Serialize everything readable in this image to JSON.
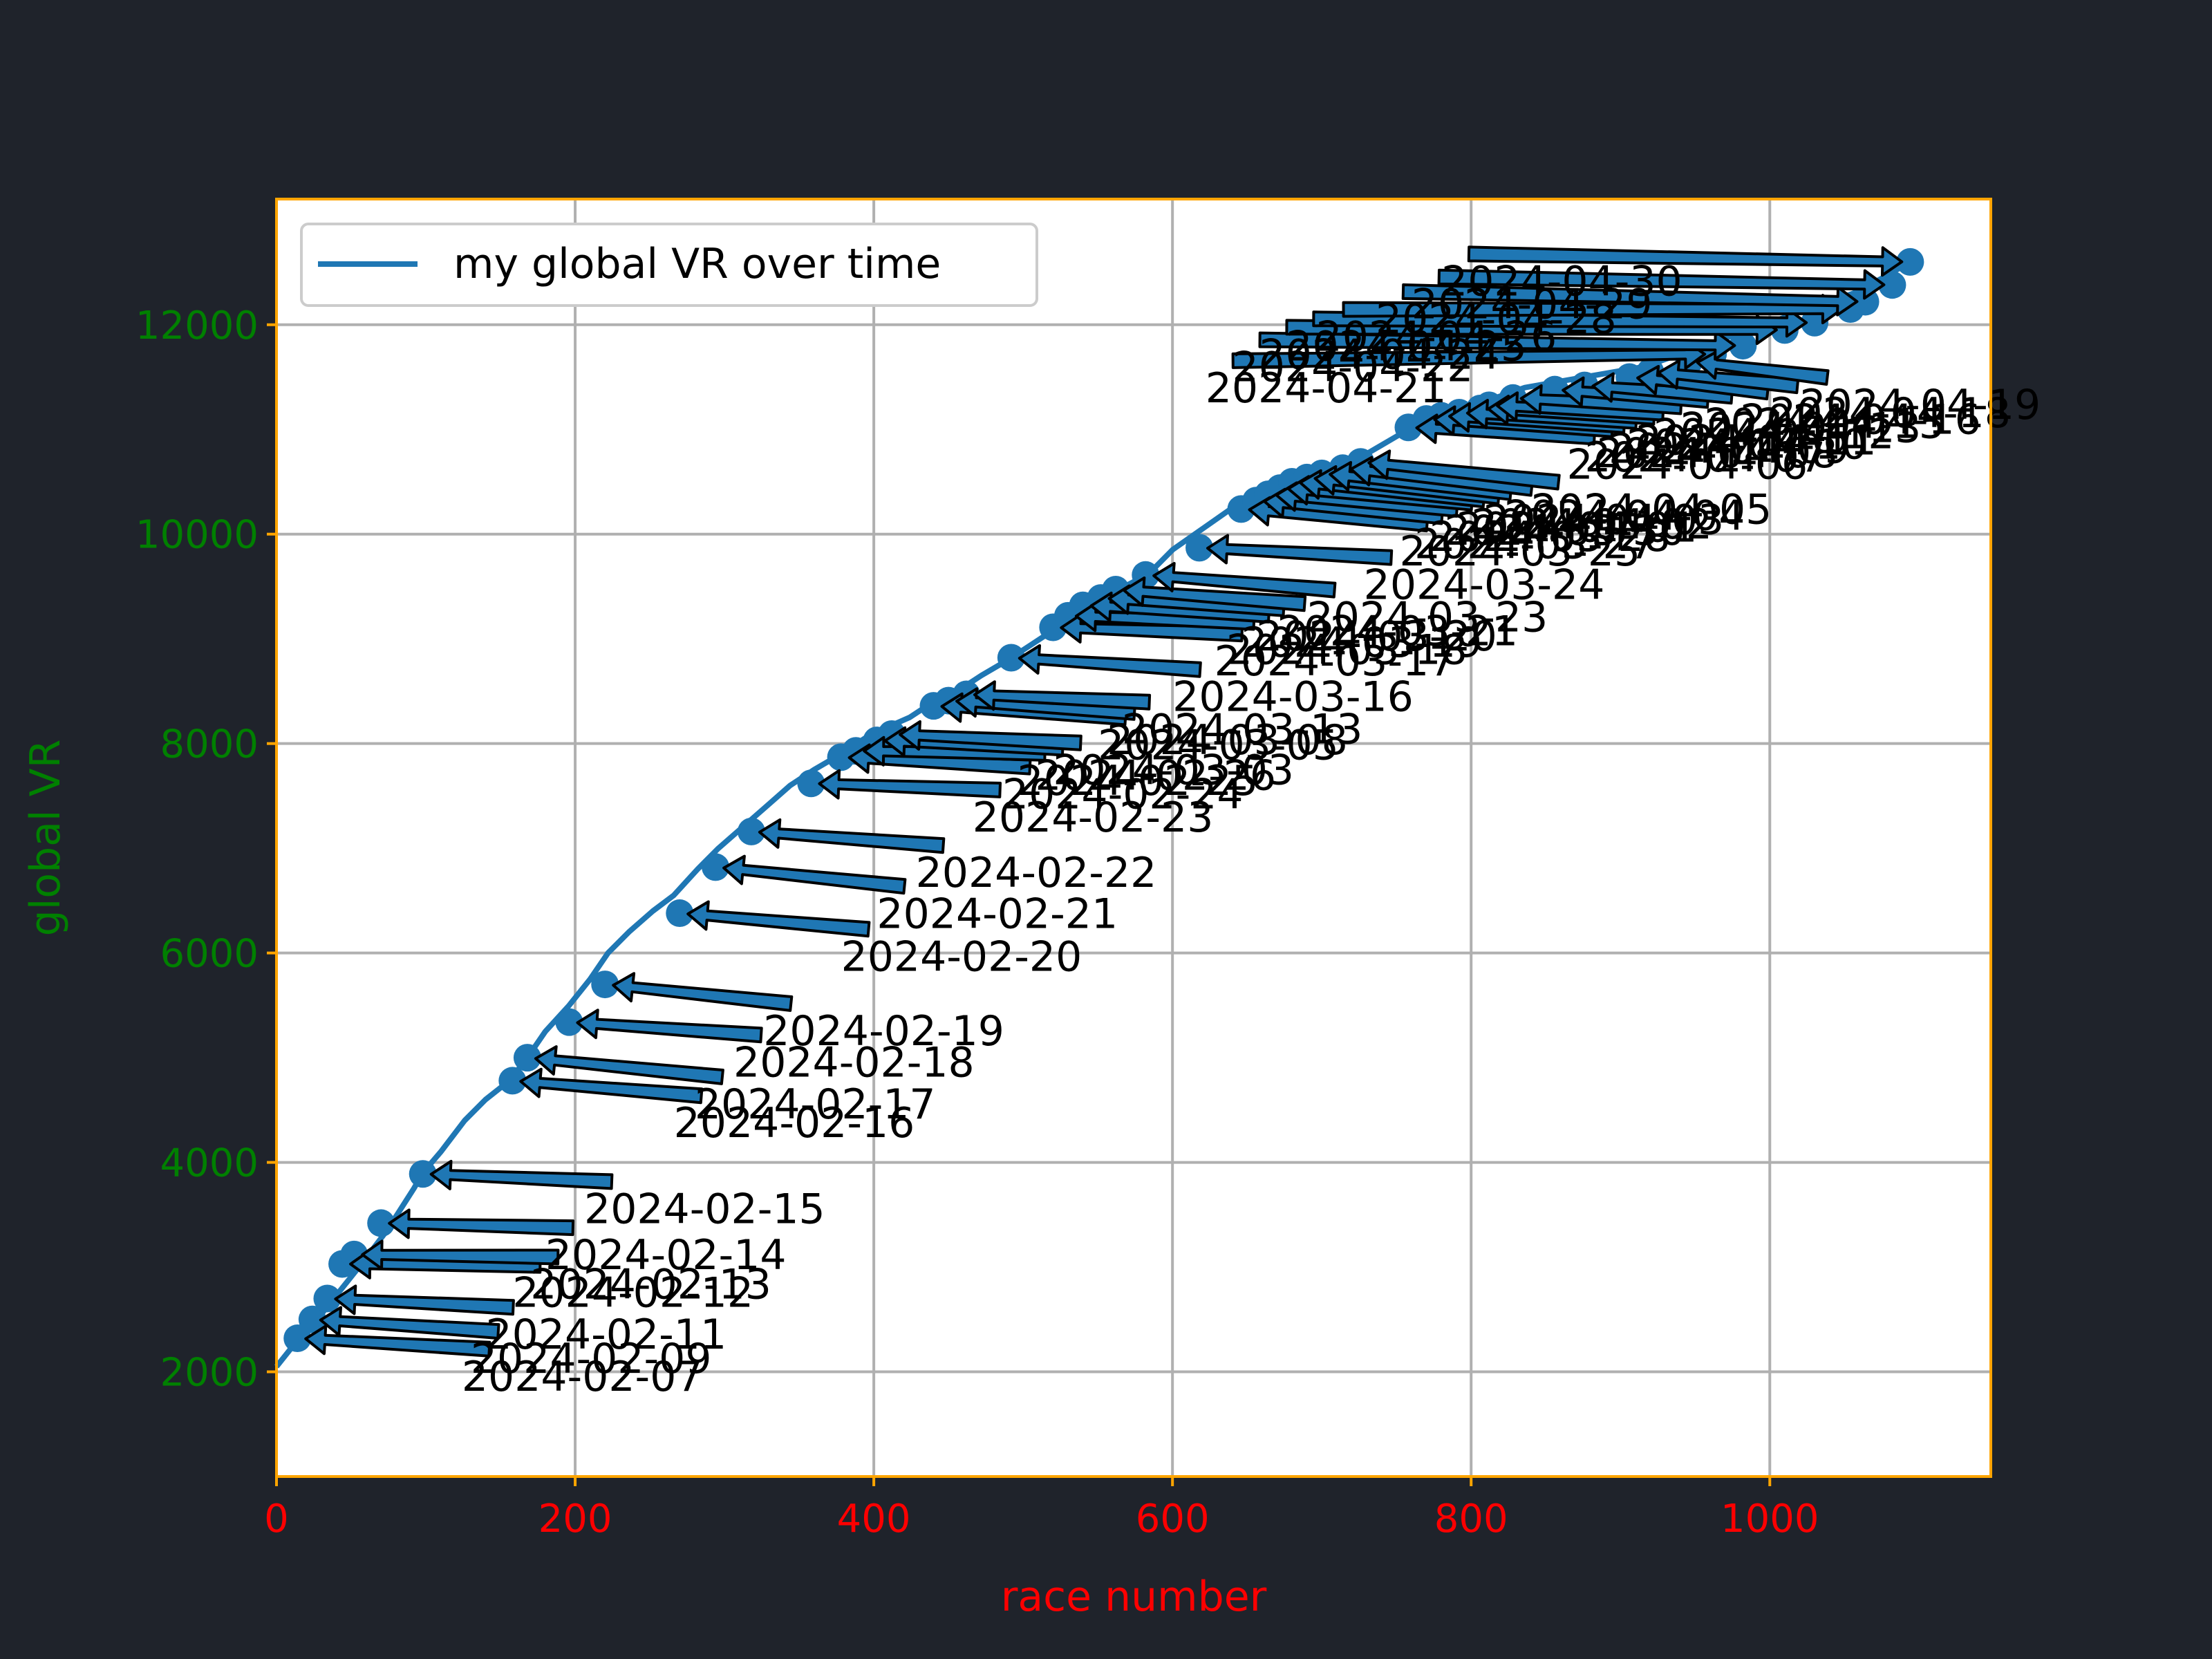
{
  "chart_data": {
    "type": "line",
    "title": "",
    "xlabel": "race number",
    "ylabel": "global VR",
    "xlim": [
      0,
      1148
    ],
    "ylim": [
      1000,
      13200
    ],
    "xticks": [
      0,
      200,
      400,
      600,
      800,
      1000
    ],
    "yticks": [
      2000,
      4000,
      6000,
      8000,
      10000,
      12000
    ],
    "grid": true,
    "legend": {
      "placement": "upper-left",
      "entries": [
        "my global VR over time"
      ]
    },
    "colors": {
      "line": "#1f77b4",
      "background": "#1f232b",
      "frame": "#ffa500",
      "xtick": "#ff0000",
      "ytick": "#008000",
      "grid": "#b0b0b0"
    },
    "series": [
      {
        "name": "my global VR over time",
        "x": [
          0,
          14,
          30,
          44,
          58,
          74,
          92,
          98,
          110,
          126,
          140,
          156,
          168,
          180,
          196,
          210,
          222,
          236,
          252,
          266,
          282,
          296,
          312,
          328,
          344,
          360,
          378,
          394,
          408,
          424,
          440,
          456,
          472,
          490,
          506,
          522,
          538,
          554,
          568,
          584,
          600,
          620,
          640,
          658,
          672,
          690,
          706,
          722,
          740,
          758,
          776,
          796,
          816,
          836,
          856,
          876,
          896,
          916,
          936,
          956,
          976,
          996,
          1016,
          1036,
          1056,
          1076,
          1094
        ],
        "y": [
          2050,
          2300,
          2550,
          2800,
          3050,
          3350,
          3750,
          3900,
          4100,
          4400,
          4600,
          4780,
          5000,
          5250,
          5500,
          5750,
          6000,
          6200,
          6400,
          6550,
          6800,
          7000,
          7200,
          7400,
          7600,
          7750,
          7900,
          8050,
          8150,
          8250,
          8400,
          8500,
          8650,
          8800,
          8950,
          9100,
          9250,
          9400,
          9500,
          9620,
          9850,
          10050,
          10250,
          10400,
          10500,
          10600,
          10650,
          10700,
          10850,
          11000,
          11100,
          11200,
          11300,
          11400,
          11450,
          11500,
          11550,
          11600,
          11700,
          11800,
          11900,
          12000,
          12100,
          12200,
          12300,
          12450,
          12600
        ]
      }
    ],
    "markers": {
      "x": [
        14,
        24,
        34,
        44,
        52,
        70,
        98,
        158,
        168,
        196,
        220,
        270,
        294,
        318,
        358,
        378,
        388,
        402,
        412,
        440,
        450,
        462,
        492,
        520,
        530,
        540,
        552,
        562,
        582,
        618,
        646,
        656,
        664,
        672,
        680,
        690,
        700,
        714,
        726,
        758,
        770,
        780,
        792,
        806,
        812,
        828,
        856,
        876,
        906,
        920,
        946,
        962,
        982,
        1010,
        1030,
        1054,
        1064,
        1082,
        1094
      ],
      "y": [
        2320,
        2500,
        2700,
        3030,
        3120,
        3420,
        3890,
        4780,
        5000,
        5340,
        5700,
        6380,
        6820,
        7160,
        7620,
        7870,
        7930,
        8030,
        8090,
        8360,
        8410,
        8470,
        8820,
        9110,
        9220,
        9320,
        9390,
        9470,
        9610,
        9870,
        10240,
        10320,
        10380,
        10440,
        10500,
        10540,
        10580,
        10630,
        10690,
        11020,
        11100,
        11130,
        11160,
        11200,
        11230,
        11300,
        11380,
        11420,
        11500,
        11550,
        11650,
        11720,
        11800,
        11950,
        12020,
        12150,
        12220,
        12380,
        12600
      ]
    },
    "annotations": [
      {
        "text": "2024-02-07",
        "x": 14,
        "y": 2320,
        "tx": 124,
        "ty": 1820
      },
      {
        "text": "2024-02-09",
        "x": 24,
        "y": 2500,
        "tx": 130,
        "ty": 1990
      },
      {
        "text": "2024-02-11",
        "x": 34,
        "y": 2700,
        "tx": 140,
        "ty": 2220
      },
      {
        "text": "2024-02-12",
        "x": 44,
        "y": 3030,
        "tx": 158,
        "ty": 2620
      },
      {
        "text": "2024-02-13",
        "x": 52,
        "y": 3120,
        "tx": 170,
        "ty": 2700
      },
      {
        "text": "2024-02-14",
        "x": 70,
        "y": 3420,
        "tx": 180,
        "ty": 2980
      },
      {
        "text": "2024-02-15",
        "x": 98,
        "y": 3890,
        "tx": 206,
        "ty": 3420
      },
      {
        "text": "2024-02-16",
        "x": 158,
        "y": 4780,
        "tx": 266,
        "ty": 4240
      },
      {
        "text": "2024-02-17",
        "x": 168,
        "y": 5000,
        "tx": 280,
        "ty": 4420
      },
      {
        "text": "2024-02-18",
        "x": 196,
        "y": 5340,
        "tx": 306,
        "ty": 4820
      },
      {
        "text": "2024-02-19",
        "x": 220,
        "y": 5700,
        "tx": 326,
        "ty": 5120
      },
      {
        "text": "2024-02-20",
        "x": 270,
        "y": 6380,
        "tx": 378,
        "ty": 5830
      },
      {
        "text": "2024-02-21",
        "x": 294,
        "y": 6820,
        "tx": 402,
        "ty": 6240
      },
      {
        "text": "2024-02-22",
        "x": 318,
        "y": 7160,
        "tx": 428,
        "ty": 6630
      },
      {
        "text": "2024-02-23",
        "x": 358,
        "y": 7620,
        "tx": 466,
        "ty": 7160
      },
      {
        "text": "2024-02-24",
        "x": 378,
        "y": 7870,
        "tx": 486,
        "ty": 7380
      },
      {
        "text": "2024-02-25",
        "x": 388,
        "y": 7930,
        "tx": 496,
        "ty": 7510
      },
      {
        "text": "2024-02-26",
        "x": 402,
        "y": 8030,
        "tx": 508,
        "ty": 7560
      },
      {
        "text": "2024-03-03",
        "x": 412,
        "y": 8090,
        "tx": 520,
        "ty": 7610
      },
      {
        "text": "2024-03-05",
        "x": 440,
        "y": 8360,
        "tx": 550,
        "ty": 7850
      },
      {
        "text": "2024-03-08",
        "x": 450,
        "y": 8410,
        "tx": 556,
        "ty": 7900
      },
      {
        "text": "2024-03-13",
        "x": 462,
        "y": 8470,
        "tx": 566,
        "ty": 8000
      },
      {
        "text": "2024-03-16",
        "x": 492,
        "y": 8820,
        "tx": 600,
        "ty": 8310
      },
      {
        "text": "2024-03-17",
        "x": 520,
        "y": 9110,
        "tx": 628,
        "ty": 8650
      },
      {
        "text": "2024-03-18",
        "x": 530,
        "y": 9220,
        "tx": 636,
        "ty": 8760
      },
      {
        "text": "2024-03-19",
        "x": 540,
        "y": 9320,
        "tx": 646,
        "ty": 8830
      },
      {
        "text": "2024-03-20",
        "x": 552,
        "y": 9390,
        "tx": 656,
        "ty": 8890
      },
      {
        "text": "2024-03-21",
        "x": 562,
        "y": 9470,
        "tx": 670,
        "ty": 8940
      },
      {
        "text": "2024-03-23",
        "x": 582,
        "y": 9610,
        "tx": 690,
        "ty": 9070
      },
      {
        "text": "2024-03-24",
        "x": 618,
        "y": 9870,
        "tx": 728,
        "ty": 9380
      },
      {
        "text": "2024-03-25",
        "x": 646,
        "y": 10240,
        "tx": 752,
        "ty": 9700
      },
      {
        "text": "2024-03-27",
        "x": 656,
        "y": 10320,
        "tx": 762,
        "ty": 9770
      },
      {
        "text": "2024-03-28",
        "x": 664,
        "y": 10380,
        "tx": 772,
        "ty": 9840
      },
      {
        "text": "2024-03-30",
        "x": 672,
        "y": 10440,
        "tx": 782,
        "ty": 9900
      },
      {
        "text": "2024-04-01",
        "x": 680,
        "y": 10500,
        "tx": 790,
        "ty": 9930
      },
      {
        "text": "2024-04-02",
        "x": 690,
        "y": 10540,
        "tx": 800,
        "ty": 9960
      },
      {
        "text": "2024-04-03",
        "x": 700,
        "y": 10580,
        "tx": 808,
        "ty": 10000
      },
      {
        "text": "2024-04-04",
        "x": 714,
        "y": 10630,
        "tx": 822,
        "ty": 10040
      },
      {
        "text": "2024-04-05",
        "x": 726,
        "y": 10690,
        "tx": 840,
        "ty": 10100
      },
      {
        "text": "2024-04-06",
        "x": 758,
        "y": 11020,
        "tx": 864,
        "ty": 10530
      },
      {
        "text": "2024-04-07",
        "x": 770,
        "y": 11100,
        "tx": 876,
        "ty": 10600
      },
      {
        "text": "2024-04-08",
        "x": 780,
        "y": 11130,
        "tx": 884,
        "ty": 10640
      },
      {
        "text": "2024-04-09",
        "x": 792,
        "y": 11160,
        "tx": 892,
        "ty": 10680
      },
      {
        "text": "2024-04-10",
        "x": 806,
        "y": 11200,
        "tx": 904,
        "ty": 10720
      },
      {
        "text": "2024-04-11",
        "x": 812,
        "y": 11230,
        "tx": 910,
        "ty": 10760
      },
      {
        "text": "2024-04-12",
        "x": 828,
        "y": 11300,
        "tx": 922,
        "ty": 10820
      },
      {
        "text": "2024-04-13",
        "x": 856,
        "y": 11380,
        "tx": 940,
        "ty": 10880
      },
      {
        "text": "2024-04-15",
        "x": 876,
        "y": 11420,
        "tx": 956,
        "ty": 10920
      },
      {
        "text": "2024-04-16",
        "x": 906,
        "y": 11500,
        "tx": 980,
        "ty": 10960
      },
      {
        "text": "2024-04-18",
        "x": 920,
        "y": 11550,
        "tx": 1000,
        "ty": 11020
      },
      {
        "text": "2024-04-19",
        "x": 946,
        "y": 11650,
        "tx": 1020,
        "ty": 11100
      },
      {
        "text": "2024-04-21",
        "x": 962,
        "y": 11720,
        "tx": 622,
        "ty": 11260
      },
      {
        "text": "2024-04-22",
        "x": 982,
        "y": 11800,
        "tx": 640,
        "ty": 11460
      },
      {
        "text": "2024-04-24",
        "x": 1010,
        "y": 11950,
        "tx": 658,
        "ty": 11580
      },
      {
        "text": "2024-04-25",
        "x": 1030,
        "y": 12020,
        "tx": 676,
        "ty": 11660
      },
      {
        "text": "2024-04-26",
        "x": 1054,
        "y": 12150,
        "tx": 696,
        "ty": 11750
      },
      {
        "text": "2024-04-28",
        "x": 1064,
        "y": 12220,
        "tx": 736,
        "ty": 11920
      },
      {
        "text": "2024-04-29",
        "x": 1082,
        "y": 12380,
        "tx": 760,
        "ty": 12060
      },
      {
        "text": "2024-04-30",
        "x": 1094,
        "y": 12600,
        "tx": 780,
        "ty": 12280
      }
    ]
  }
}
